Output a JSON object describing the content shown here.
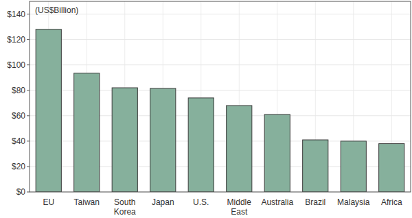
{
  "chart_data": {
    "type": "bar",
    "annotation": "(US$Billion)",
    "categories": [
      "EU",
      "Taiwan",
      "South Korea",
      "Japan",
      "U.S.",
      "Middle East",
      "Australia",
      "Brazil",
      "Malaysia",
      "Africa"
    ],
    "values": [
      128,
      93.5,
      82,
      81.5,
      74,
      68,
      61,
      41,
      40,
      38
    ],
    "color": "#86b09c",
    "ylim": [
      0,
      150
    ],
    "yticks": [
      {
        "value": 0,
        "label": "$0"
      },
      {
        "value": 20,
        "label": "$20"
      },
      {
        "value": 40,
        "label": "$40"
      },
      {
        "value": 60,
        "label": "$60"
      },
      {
        "value": 80,
        "label": "$80"
      },
      {
        "value": 100,
        "label": "$100"
      },
      {
        "value": 120,
        "label": "$120"
      },
      {
        "value": 140,
        "label": "$140"
      }
    ],
    "grid": true
  }
}
